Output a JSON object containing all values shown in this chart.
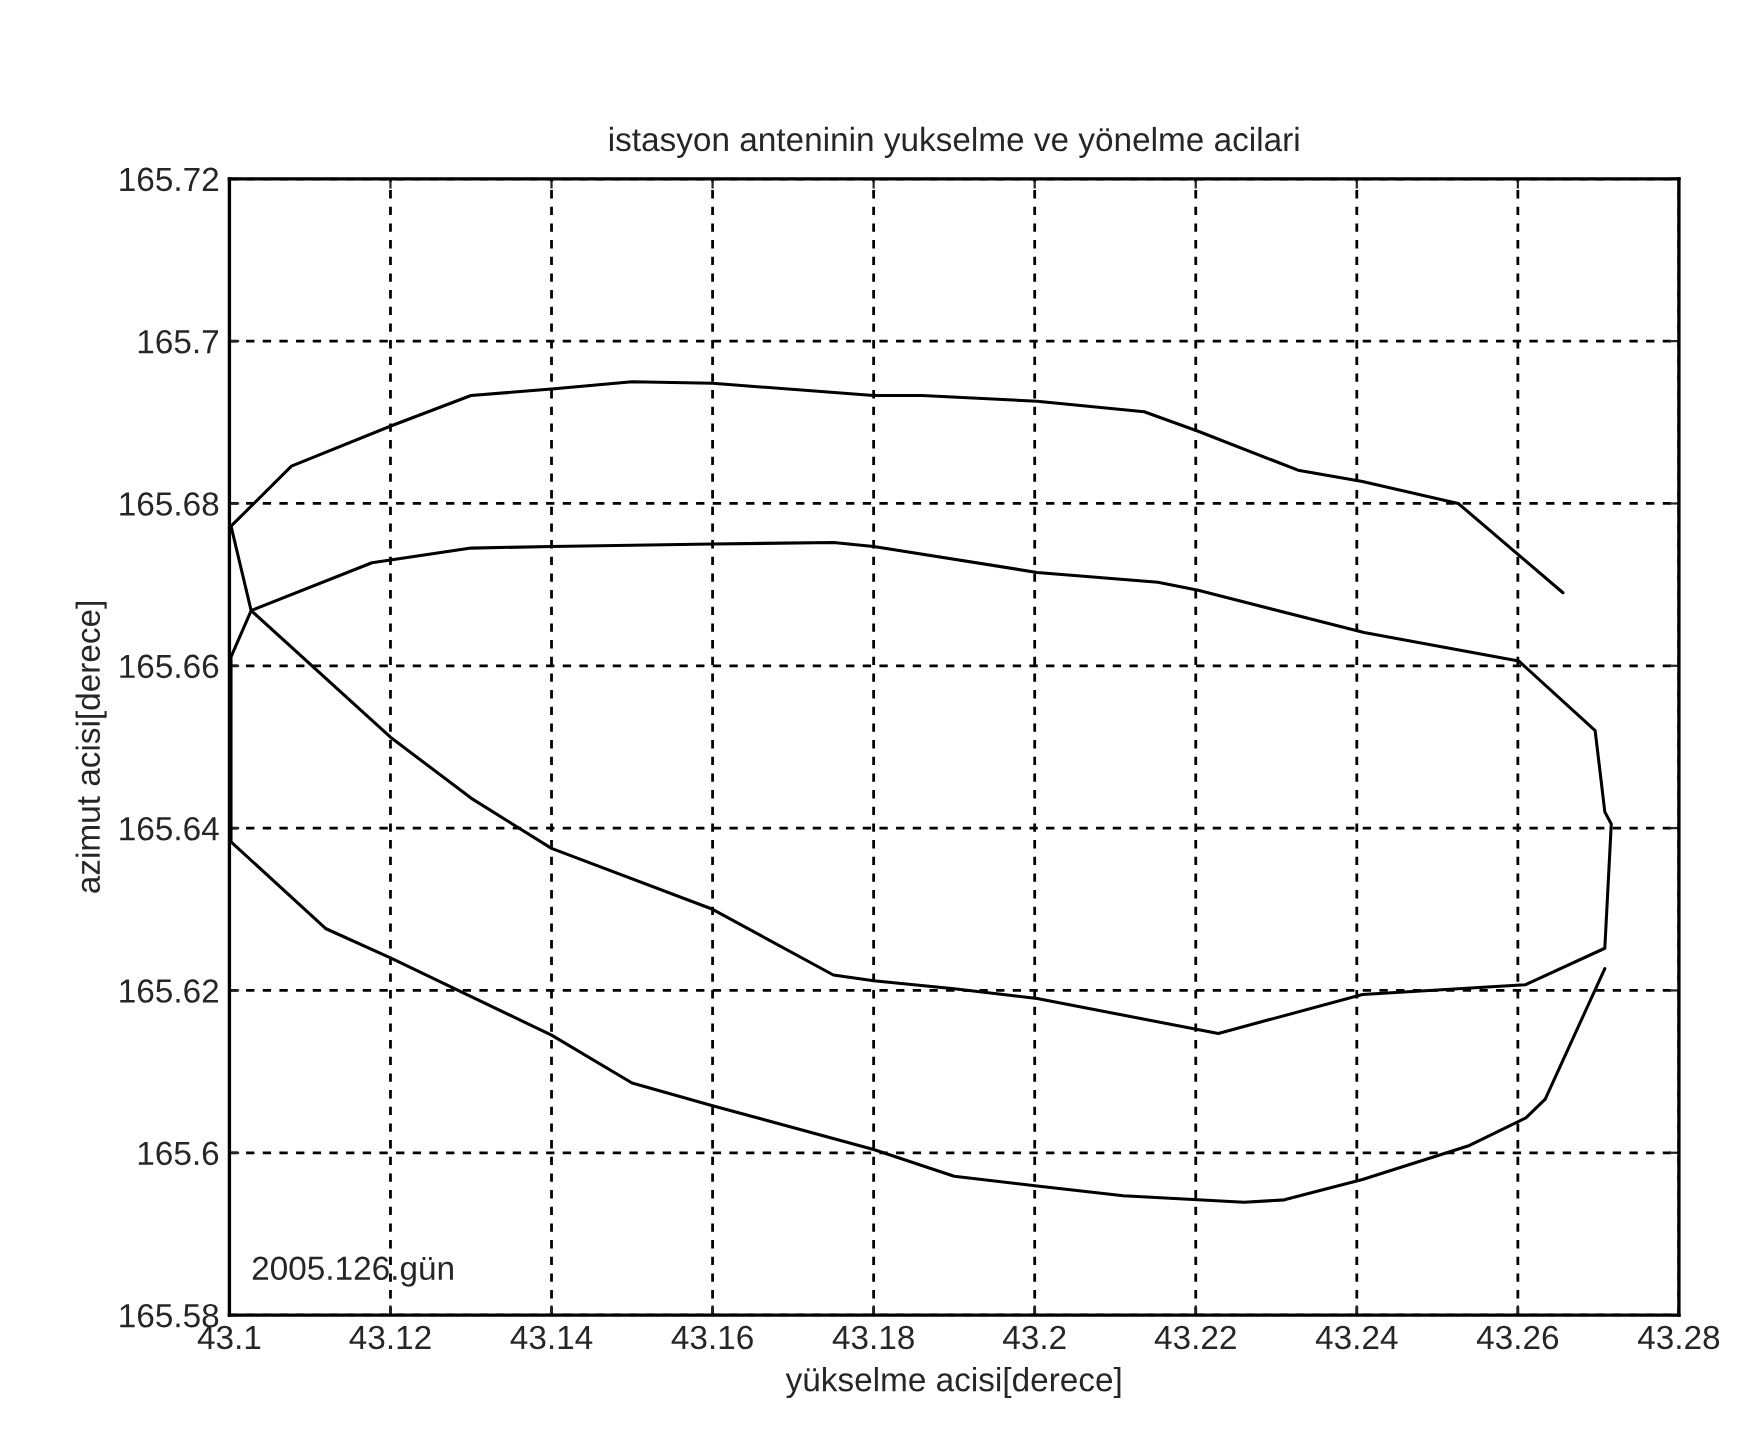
{
  "chart_data": {
    "type": "line",
    "title": "istasyon anteninin yukselme ve yönelme acilari",
    "xlabel": "yükselme acisi[derece]",
    "ylabel": "azimut acisi[derece]",
    "annotations": [
      "2005.126.gün"
    ],
    "series": [
      {
        "color": "#000000",
        "x": [
          43.2656,
          43.2526,
          43.2407,
          43.2327,
          43.2203,
          43.2136,
          43.2003,
          43.186,
          43.18,
          43.16,
          43.15,
          43.14,
          43.13,
          43.1202,
          43.1077,
          43.1002,
          43.1027,
          43.12,
          43.13,
          43.14,
          43.16,
          43.175,
          43.18,
          43.19,
          43.2003,
          43.2228,
          43.2407,
          43.2609,
          43.2708,
          43.2716,
          43.2708,
          43.2696,
          43.2601,
          43.2409,
          43.2203,
          43.2153,
          43.2003,
          43.18,
          43.175,
          43.16,
          43.14,
          43.13,
          43.1177,
          43.1027,
          43.1002,
          43.1002,
          43.112,
          43.12,
          43.14,
          43.15,
          43.16,
          43.18,
          43.19,
          43.2003,
          43.211,
          43.226,
          43.231,
          43.2407,
          43.254,
          43.261,
          43.2634,
          43.2708
        ],
        "values": [
          165.669,
          165.68,
          165.6827,
          165.6841,
          165.6889,
          165.6913,
          165.6926,
          165.6933,
          165.6933,
          165.6948,
          165.695,
          165.6941,
          165.6933,
          165.6896,
          165.6846,
          165.6772,
          165.6668,
          165.6512,
          165.6437,
          165.6375,
          165.63,
          165.6219,
          165.6212,
          165.6202,
          165.619,
          165.6147,
          165.6195,
          165.6207,
          165.6252,
          165.6405,
          165.642,
          165.652,
          165.6606,
          165.6641,
          165.6693,
          165.6703,
          165.6715,
          165.6747,
          165.6752,
          165.675,
          165.6747,
          165.6745,
          165.6727,
          165.6668,
          165.6611,
          165.6383,
          165.6276,
          165.624,
          165.6145,
          165.6086,
          165.6058,
          165.6004,
          165.5971,
          165.5959,
          165.5947,
          165.5939,
          165.5942,
          165.5967,
          165.6009,
          165.6043,
          165.6066,
          165.6227
        ]
      }
    ],
    "xlim": [
      43.1,
      43.28
    ],
    "xticks": [
      43.1,
      43.12,
      43.14,
      43.16,
      43.18,
      43.2,
      43.22,
      43.24,
      43.26,
      43.28
    ],
    "ylim": [
      165.58,
      165.72
    ],
    "yticks": [
      165.58,
      165.6,
      165.62,
      165.64,
      165.66,
      165.68,
      165.7,
      165.72
    ],
    "grid": true,
    "line_style": "solid",
    "marker": "none"
  }
}
